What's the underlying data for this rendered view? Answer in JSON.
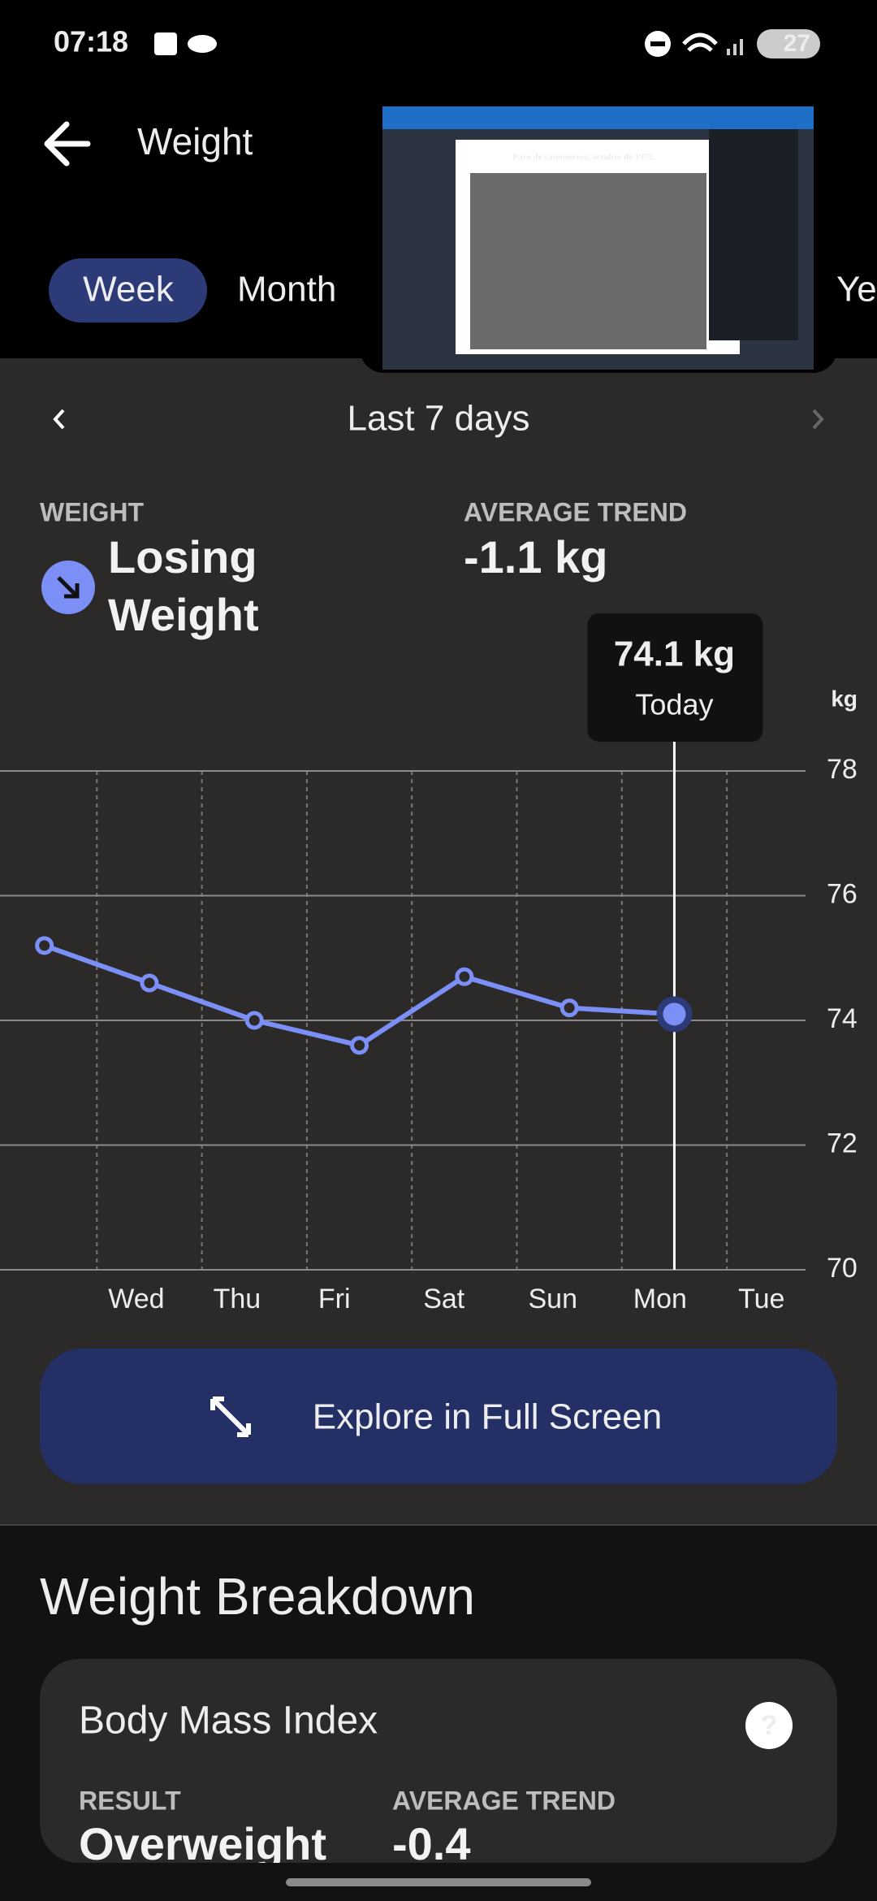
{
  "status_bar": {
    "time": "07:18",
    "battery": "27"
  },
  "header": {
    "title": "Weight"
  },
  "tabs": [
    "Week",
    "Month",
    "Year"
  ],
  "pip": {
    "caption": "Paro de camioneros, octubre de 1972."
  },
  "range": {
    "label": "Last 7 days"
  },
  "summary": {
    "weight_label": "WEIGHT",
    "weight_status": [
      "Losing",
      "Weight"
    ],
    "trend_label": "AVERAGE TREND",
    "trend_value": "-1.1 kg"
  },
  "chart": {
    "type": "line",
    "color": "#7b8ff7",
    "unit": "kg",
    "categories": [
      null,
      "Wed",
      "Thu",
      "Fri",
      "Sat",
      "Sun",
      "Mon",
      "Tue"
    ],
    "values": [
      75.2,
      74.6,
      74.0,
      73.6,
      74.7,
      74.2,
      74.1,
      null
    ],
    "ylim": [
      70,
      78
    ],
    "yticks": [
      70,
      72,
      74,
      76,
      78
    ],
    "grid": true,
    "tooltip": {
      "index": 6,
      "value_label": "74.1 kg",
      "day": "Today"
    }
  },
  "button": {
    "label": "Explore in Full Screen"
  },
  "breakdown": {
    "title": "Weight Breakdown",
    "card_title": "Body Mass Index",
    "help": "?",
    "result_label": "RESULT",
    "result_value": "Overweight",
    "trend_label": "AVERAGE TREND",
    "trend_value": "-0.4"
  }
}
